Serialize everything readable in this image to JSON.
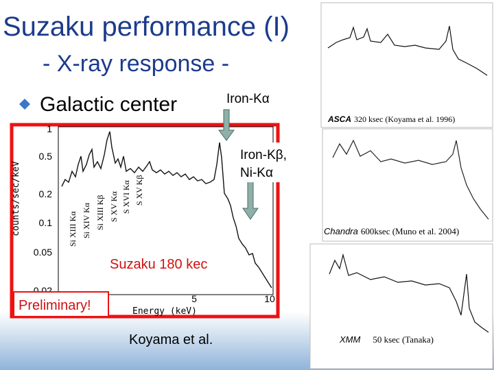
{
  "title": "Suzaku performance (I)",
  "subtitle": "- X-ray response -",
  "bullet": "Galactic center",
  "annotations": {
    "iron_ka": "Iron-Kα",
    "iron_kb_ni_ka": [
      "Iron-Kβ,",
      "Ni-Kα"
    ],
    "suzaku_label": "Suzaku 180 kec",
    "preliminary": "Preliminary!",
    "credit": "Koyama et al."
  },
  "main_plot": {
    "y_label": "counts/sec/keV",
    "x_label": "Energy (keV)",
    "y_ticks": [
      "1",
      "0.5",
      "0.2",
      "0.1",
      "0.05",
      "0.02"
    ],
    "x_ticks": [
      "5",
      "10"
    ],
    "line_labels": [
      "Si XIII Kα",
      "Si XIV Kα",
      "Si XIII Kβ",
      "S XV Kα",
      "S XVI Kα",
      "S XV Kβ"
    ]
  },
  "panels": [
    {
      "instrument": "ASCA",
      "caption": "320 ksec (Koyama et al. 1996)"
    },
    {
      "instrument": "Chandra",
      "caption": "600ksec (Muno et al. 2004)"
    },
    {
      "instrument": "XMM",
      "caption": "50 ksec (Tanaka)"
    }
  ]
}
